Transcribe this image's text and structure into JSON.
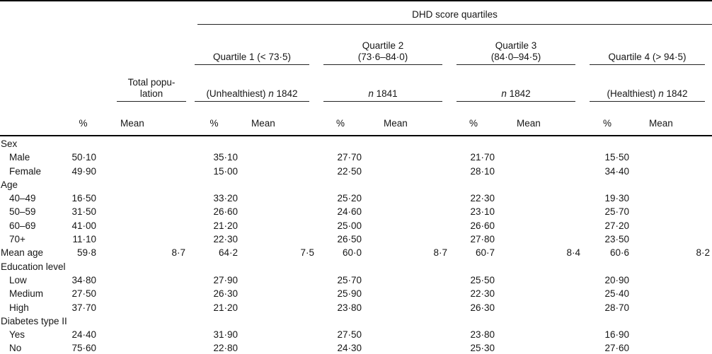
{
  "header": {
    "group_title": "DHD score quartiles",
    "percent_label": "%",
    "mean_label": "Mean",
    "total": {
      "line1": "Total popu-",
      "line2": "lation"
    },
    "quartiles": [
      {
        "line1": "Quartile 1 (< 73·5)",
        "line2": "",
        "n_prefix": "(Unhealthiest) ",
        "n_word": "n",
        "n_count": "1842"
      },
      {
        "line1": "Quartile 2",
        "line2": "(73·6–84·0)",
        "n_prefix": "",
        "n_word": "n",
        "n_count": "1841"
      },
      {
        "line1": "Quartile 3",
        "line2": "(84·0–94·5)",
        "n_prefix": "",
        "n_word": "n",
        "n_count": "1842"
      },
      {
        "line1": "Quartile 4 (> 94·5)",
        "line2": "",
        "n_prefix": "(Healthiest) ",
        "n_word": "n",
        "n_count": "1842"
      }
    ]
  },
  "rows": [
    {
      "label": "Sex",
      "indent": false,
      "values": [
        "",
        "",
        "",
        "",
        "",
        "",
        "",
        "",
        "",
        ""
      ]
    },
    {
      "label": "Male",
      "indent": true,
      "values": [
        "50·10",
        "",
        "35·10",
        "",
        "27·70",
        "",
        "21·70",
        "",
        "15·50",
        ""
      ]
    },
    {
      "label": "Female",
      "indent": true,
      "values": [
        "49·90",
        "",
        "15·00",
        "",
        "22·50",
        "",
        "28·10",
        "",
        "34·40",
        ""
      ]
    },
    {
      "label": "Age",
      "indent": false,
      "values": [
        "",
        "",
        "",
        "",
        "",
        "",
        "",
        "",
        "",
        ""
      ]
    },
    {
      "label": "40–49",
      "indent": true,
      "values": [
        "16·50",
        "",
        "33·20",
        "",
        "25·20",
        "",
        "22·30",
        "",
        "19·30",
        ""
      ]
    },
    {
      "label": "50–59",
      "indent": true,
      "values": [
        "31·50",
        "",
        "26·60",
        "",
        "24·60",
        "",
        "23·10",
        "",
        "25·70",
        ""
      ]
    },
    {
      "label": "60–69",
      "indent": true,
      "values": [
        "41·00",
        "",
        "21·20",
        "",
        "25·00",
        "",
        "26·60",
        "",
        "27·20",
        ""
      ]
    },
    {
      "label": "70+",
      "indent": true,
      "values": [
        "11·10",
        "",
        "22·30",
        "",
        "26·50",
        "",
        "27·80",
        "",
        "23·50",
        ""
      ]
    },
    {
      "label": "Mean age",
      "indent": false,
      "values": [
        "59·8",
        "8·7",
        "64·2",
        "7·5",
        "60·0",
        "8·7",
        "60·7",
        "8·4",
        "60·6",
        "8·2"
      ]
    },
    {
      "label": "Education level",
      "indent": false,
      "values": [
        "",
        "",
        "",
        "",
        "",
        "",
        "",
        "",
        "",
        ""
      ]
    },
    {
      "label": "Low",
      "indent": true,
      "values": [
        "34·80",
        "",
        "27·90",
        "",
        "25·70",
        "",
        "25·50",
        "",
        "20·90",
        ""
      ]
    },
    {
      "label": "Medium",
      "indent": true,
      "values": [
        "27·50",
        "",
        "26·30",
        "",
        "25·90",
        "",
        "22·30",
        "",
        "25·40",
        ""
      ]
    },
    {
      "label": "High",
      "indent": true,
      "values": [
        "37·70",
        "",
        "21·20",
        "",
        "23·80",
        "",
        "26·30",
        "",
        "28·70",
        ""
      ]
    },
    {
      "label": "Diabetes type II",
      "indent": false,
      "values": [
        "",
        "",
        "",
        "",
        "",
        "",
        "",
        "",
        "",
        ""
      ]
    },
    {
      "label": "Yes",
      "indent": true,
      "values": [
        "24·40",
        "",
        "31·90",
        "",
        "27·50",
        "",
        "23·80",
        "",
        "16·90",
        ""
      ]
    },
    {
      "label": "No",
      "indent": true,
      "values": [
        "75·60",
        "",
        "22·80",
        "",
        "24·30",
        "",
        "25·30",
        "",
        "27·60",
        ""
      ]
    }
  ]
}
